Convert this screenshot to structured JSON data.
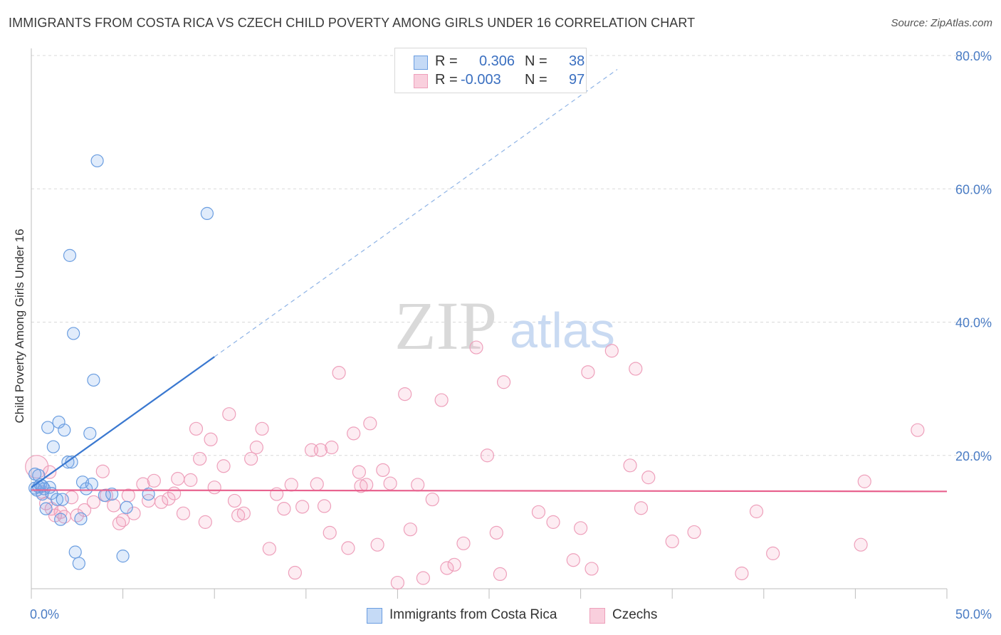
{
  "title": "IMMIGRANTS FROM COSTA RICA VS CZECH CHILD POVERTY AMONG GIRLS UNDER 16 CORRELATION CHART",
  "source": "Source: ZipAtlas.com",
  "watermark": {
    "zip": "ZIP",
    "atlas": "atlas"
  },
  "legend": {
    "rows": [
      {
        "r_label": "R =",
        "r_value": "0.306",
        "n_label": "N =",
        "n_value": "38",
        "color": "#6a9de0"
      },
      {
        "r_label": "R =",
        "r_value": "-0.003",
        "n_label": "N =",
        "n_value": "97",
        "color": "#eea0bb"
      }
    ]
  },
  "bottom_legend": [
    "Immigrants from Costa Rica",
    "Czechs"
  ],
  "chart_data": {
    "type": "scatter",
    "title": "IMMIGRANTS FROM COSTA RICA VS CZECH CHILD POVERTY AMONG GIRLS UNDER 16 CORRELATION CHART",
    "xlabel": "",
    "ylabel": "Child Poverty Among Girls Under 16",
    "xlim": [
      0,
      50
    ],
    "ylim": [
      0,
      80
    ],
    "x_tick_labels": [
      "0.0%",
      "50.0%"
    ],
    "y_ticks": [
      20,
      40,
      60,
      80
    ],
    "y_tick_labels": [
      "20.0%",
      "40.0%",
      "60.0%",
      "80.0%"
    ],
    "grid": true,
    "legend_position": "top-center",
    "colors": {
      "blue": "#3a78d0",
      "pink": "#e8638f"
    },
    "series": [
      {
        "name": "Immigrants from Costa Rica",
        "color": "#6a9de0",
        "trend": {
          "x0": 0,
          "y0": 15.2,
          "x1": 10,
          "y1": 34.8,
          "dashed_to_x": 32
        },
        "points": [
          [
            0.2,
            17.2
          ],
          [
            0.2,
            15.1
          ],
          [
            0.3,
            14.8
          ],
          [
            0.4,
            15.3
          ],
          [
            0.5,
            15.6
          ],
          [
            0.6,
            14.2
          ],
          [
            0.7,
            15.0
          ],
          [
            0.8,
            12.0
          ],
          [
            0.9,
            24.2
          ],
          [
            1.0,
            15.2
          ],
          [
            1.1,
            14.3
          ],
          [
            1.2,
            21.3
          ],
          [
            1.5,
            25.0
          ],
          [
            1.4,
            13.4
          ],
          [
            1.6,
            10.4
          ],
          [
            1.7,
            13.4
          ],
          [
            1.8,
            23.8
          ],
          [
            2.0,
            19.0
          ],
          [
            2.2,
            19.0
          ],
          [
            2.3,
            38.3
          ],
          [
            2.1,
            50.0
          ],
          [
            2.4,
            5.5
          ],
          [
            2.6,
            3.8
          ],
          [
            2.7,
            10.5
          ],
          [
            2.8,
            16.0
          ],
          [
            3.0,
            15.0
          ],
          [
            3.2,
            23.3
          ],
          [
            3.3,
            15.7
          ],
          [
            3.4,
            31.3
          ],
          [
            3.6,
            64.2
          ],
          [
            4.0,
            14.0
          ],
          [
            4.4,
            14.2
          ],
          [
            5.0,
            4.9
          ],
          [
            5.2,
            12.2
          ],
          [
            6.4,
            14.2
          ],
          [
            9.6,
            56.3
          ],
          [
            0.4,
            17.0
          ],
          [
            0.6,
            15.4
          ]
        ]
      },
      {
        "name": "Czechs",
        "color": "#eea0bb",
        "trend": {
          "x0": 0,
          "y0": 14.8,
          "x1": 50,
          "y1": 14.6
        },
        "points": [
          [
            0.3,
            18.3
          ],
          [
            0.6,
            14.5
          ],
          [
            0.8,
            12.8
          ],
          [
            1.0,
            17.5
          ],
          [
            1.1,
            12.0
          ],
          [
            1.3,
            11.0
          ],
          [
            1.6,
            11.5
          ],
          [
            1.8,
            10.8
          ],
          [
            2.2,
            13.7
          ],
          [
            2.5,
            11.0
          ],
          [
            2.9,
            11.8
          ],
          [
            3.4,
            13.0
          ],
          [
            3.9,
            17.6
          ],
          [
            4.1,
            14.0
          ],
          [
            4.5,
            12.5
          ],
          [
            4.8,
            9.8
          ],
          [
            5.0,
            10.3
          ],
          [
            5.3,
            14.0
          ],
          [
            5.6,
            11.3
          ],
          [
            6.1,
            15.7
          ],
          [
            6.4,
            13.2
          ],
          [
            6.7,
            16.2
          ],
          [
            7.1,
            13.0
          ],
          [
            7.5,
            13.5
          ],
          [
            7.8,
            14.3
          ],
          [
            8.0,
            16.5
          ],
          [
            8.3,
            11.3
          ],
          [
            8.7,
            16.3
          ],
          [
            9.0,
            24.0
          ],
          [
            9.2,
            19.5
          ],
          [
            9.5,
            10.0
          ],
          [
            9.8,
            22.4
          ],
          [
            10.0,
            15.2
          ],
          [
            10.5,
            18.4
          ],
          [
            10.8,
            26.2
          ],
          [
            11.1,
            13.2
          ],
          [
            11.3,
            11.0
          ],
          [
            11.6,
            11.3
          ],
          [
            12.0,
            19.5
          ],
          [
            12.3,
            21.2
          ],
          [
            12.6,
            24.0
          ],
          [
            13.0,
            6.0
          ],
          [
            13.4,
            14.2
          ],
          [
            13.8,
            12.0
          ],
          [
            14.2,
            15.6
          ],
          [
            14.4,
            2.4
          ],
          [
            14.8,
            12.3
          ],
          [
            15.3,
            20.8
          ],
          [
            15.6,
            15.7
          ],
          [
            15.8,
            20.8
          ],
          [
            16.0,
            12.4
          ],
          [
            16.3,
            8.4
          ],
          [
            16.4,
            21.2
          ],
          [
            16.8,
            32.4
          ],
          [
            17.3,
            6.1
          ],
          [
            17.6,
            23.3
          ],
          [
            17.9,
            17.5
          ],
          [
            18.0,
            15.4
          ],
          [
            18.3,
            15.6
          ],
          [
            18.5,
            24.8
          ],
          [
            18.9,
            6.6
          ],
          [
            19.2,
            17.8
          ],
          [
            19.6,
            15.8
          ],
          [
            20.0,
            0.9
          ],
          [
            20.4,
            29.2
          ],
          [
            20.7,
            8.9
          ],
          [
            21.1,
            15.6
          ],
          [
            21.4,
            1.6
          ],
          [
            21.9,
            13.4
          ],
          [
            22.4,
            28.3
          ],
          [
            22.7,
            3.1
          ],
          [
            23.1,
            3.6
          ],
          [
            23.6,
            6.8
          ],
          [
            24.3,
            36.2
          ],
          [
            24.9,
            20.0
          ],
          [
            25.4,
            8.4
          ],
          [
            25.6,
            2.2
          ],
          [
            25.8,
            31.0
          ],
          [
            27.7,
            11.5
          ],
          [
            28.5,
            10.0
          ],
          [
            29.6,
            4.3
          ],
          [
            30.0,
            9.1
          ],
          [
            30.4,
            32.5
          ],
          [
            30.6,
            3.0
          ],
          [
            31.7,
            35.7
          ],
          [
            32.7,
            18.5
          ],
          [
            33.0,
            33.0
          ],
          [
            33.3,
            12.1
          ],
          [
            33.7,
            16.7
          ],
          [
            35.0,
            7.1
          ],
          [
            36.2,
            8.5
          ],
          [
            38.8,
            2.3
          ],
          [
            39.6,
            11.6
          ],
          [
            40.5,
            5.3
          ],
          [
            45.3,
            6.6
          ],
          [
            45.5,
            16.1
          ],
          [
            48.4,
            23.8
          ]
        ]
      }
    ]
  }
}
